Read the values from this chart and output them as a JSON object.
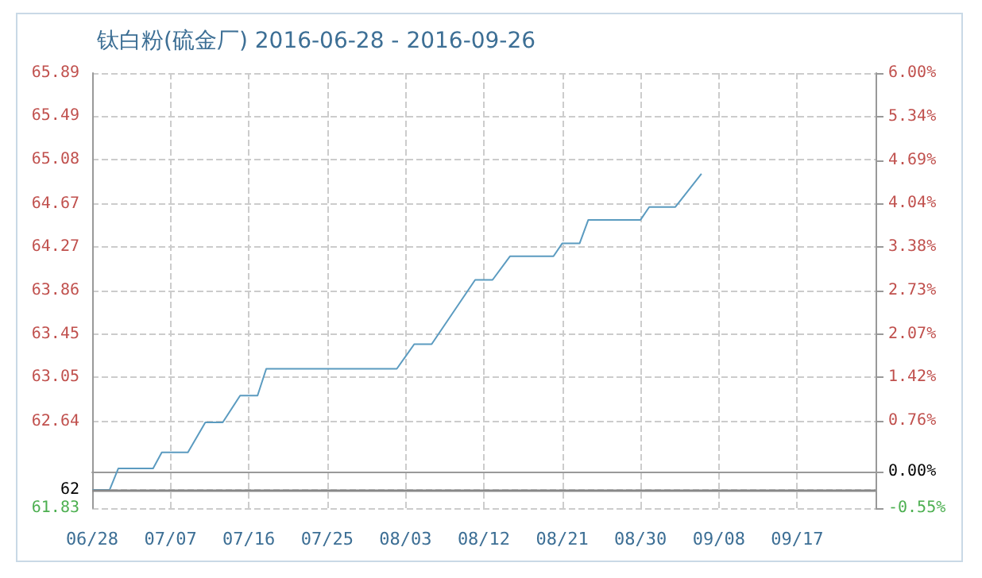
{
  "chart_data": {
    "type": "line",
    "title": "钛白粉(硫金厂) 2016-06-28 - 2016-09-26",
    "x": [
      "2016-06-28",
      "2016-06-30",
      "2016-07-01",
      "2016-07-05",
      "2016-07-06",
      "2016-07-09",
      "2016-07-11",
      "2016-07-13",
      "2016-07-15",
      "2016-07-17",
      "2016-07-18",
      "2016-08-02",
      "2016-08-04",
      "2016-08-06",
      "2016-08-11",
      "2016-08-13",
      "2016-08-15",
      "2016-08-20",
      "2016-08-21",
      "2016-08-23",
      "2016-08-24",
      "2016-08-30",
      "2016-08-31",
      "2016-09-03",
      "2016-09-06"
    ],
    "series": [
      {
        "color": "#5b9bc0",
        "values": [
          62,
          62,
          62.2,
          62.2,
          62.35,
          62.35,
          62.63,
          62.63,
          62.88,
          62.88,
          63.13,
          63.13,
          63.36,
          63.36,
          63.96,
          63.96,
          64.18,
          64.18,
          64.3,
          64.3,
          64.52,
          64.52,
          64.64,
          64.64,
          64.95
        ]
      }
    ],
    "xlim": [
      "2016-06-28",
      "2016-09-26"
    ],
    "xticks": [
      {
        "value": "2016-06-28",
        "label": "06/28"
      },
      {
        "value": "2016-07-07",
        "label": "07/07"
      },
      {
        "value": "2016-07-16",
        "label": "07/16"
      },
      {
        "value": "2016-07-25",
        "label": "07/25"
      },
      {
        "value": "2016-08-03",
        "label": "08/03"
      },
      {
        "value": "2016-08-12",
        "label": "08/12"
      },
      {
        "value": "2016-08-21",
        "label": "08/21"
      },
      {
        "value": "2016-08-30",
        "label": "08/30"
      },
      {
        "value": "2016-09-08",
        "label": "09/08"
      },
      {
        "value": "2016-09-17",
        "label": "09/17"
      }
    ],
    "ylim": [
      61.83,
      65.89
    ],
    "yticks": [
      61.83,
      62,
      62.64,
      63.05,
      63.45,
      63.86,
      64.27,
      64.67,
      65.08,
      65.49,
      65.89
    ],
    "y2lim": [
      -0.55,
      6.0
    ],
    "y2ticks": [
      {
        "value": -0.55,
        "label": "-0.55%"
      },
      {
        "value": 0,
        "label": "0.00%"
      },
      {
        "value": 0.76,
        "label": "0.76%"
      },
      {
        "value": 1.42,
        "label": "1.42%"
      },
      {
        "value": 2.07,
        "label": "2.07%"
      },
      {
        "value": 2.73,
        "label": "2.73%"
      },
      {
        "value": 3.38,
        "label": "3.38%"
      },
      {
        "value": 4.04,
        "label": "4.04%"
      },
      {
        "value": 4.69,
        "label": "4.69%"
      },
      {
        "value": 5.34,
        "label": "5.34%"
      },
      {
        "value": 6.0,
        "label": "6.00%"
      }
    ],
    "ref_lines": [
      {
        "axis": "y",
        "value": 62,
        "color": "#888888",
        "line_style": "solid"
      }
    ],
    "grid": true,
    "marker": "none",
    "line_style": "solid"
  }
}
